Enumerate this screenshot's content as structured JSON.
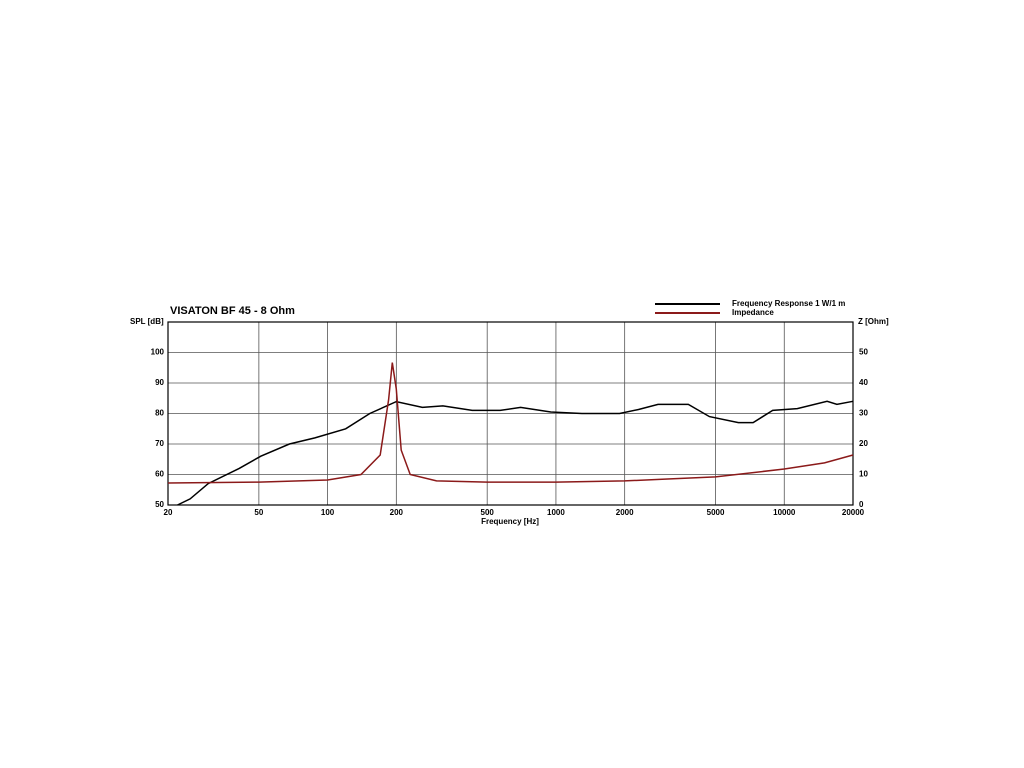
{
  "chart_data": {
    "type": "line",
    "title": "VISATON BF 45 - 8 Ohm",
    "xlabel": "Frequency [Hz]",
    "ylabel": "SPL [dB]",
    "y2label": "Z [Ohm]",
    "xscale": "log",
    "xlim": [
      20,
      20000
    ],
    "xticks": [
      20,
      50,
      100,
      200,
      500,
      1000,
      2000,
      5000,
      10000,
      20000
    ],
    "ylim": [
      50,
      110
    ],
    "yticks": [
      50,
      60,
      70,
      80,
      90,
      100
    ],
    "y2lim": [
      0,
      60
    ],
    "y2ticks": [
      0,
      10,
      20,
      30,
      40,
      50
    ],
    "grid": true,
    "legend": "top-right",
    "series": [
      {
        "name": "Frequency Response 1 W/1 m",
        "color": "#000000",
        "x": [
          22,
          25,
          30,
          41,
          51,
          68,
          88,
          120,
          153,
          200,
          260,
          320,
          430,
          570,
          700,
          950,
          1300,
          1900,
          2300,
          2800,
          3800,
          4700,
          6300,
          7300,
          8900,
          11400,
          15400,
          17000,
          20000
        ],
        "values": [
          50,
          52,
          57,
          62,
          66,
          70,
          72,
          75,
          80,
          83.9,
          82,
          82.5,
          81,
          81,
          82,
          80.5,
          80,
          80,
          81.3,
          83,
          83,
          79,
          77,
          77,
          81,
          81.6,
          84,
          83,
          84
        ]
      },
      {
        "name": "Impedance",
        "color": "#8b1a1a",
        "axis": "y2",
        "x": [
          20,
          50,
          100,
          140,
          170,
          185,
          192,
          200,
          210,
          230,
          300,
          500,
          1000,
          2000,
          3000,
          5000,
          10000,
          15000,
          20000
        ],
        "values": [
          7.2,
          7.5,
          8.2,
          10,
          16.4,
          34.5,
          46.7,
          38,
          18,
          10,
          7.9,
          7.5,
          7.5,
          7.9,
          8.5,
          9.2,
          11.8,
          13.8,
          16.4
        ]
      }
    ]
  }
}
